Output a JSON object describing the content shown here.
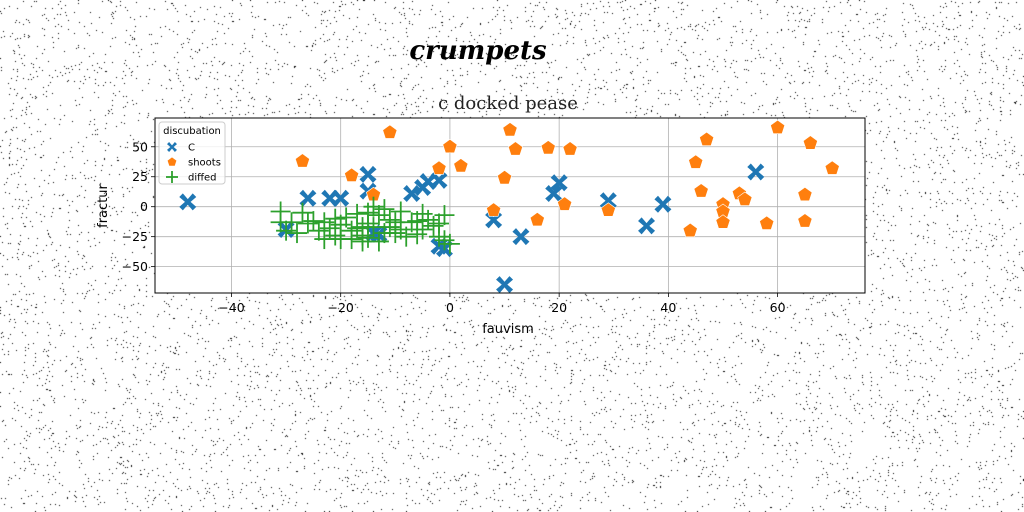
{
  "chart_data": {
    "type": "scatter",
    "suptitle": "crumpets",
    "title": "c docked pease",
    "xlabel": "fauvism",
    "ylabel": "fractur",
    "xlim": [
      -54,
      76
    ],
    "ylim": [
      -72,
      74
    ],
    "xticks": [
      -40,
      -20,
      0,
      20,
      40,
      60
    ],
    "yticks": [
      -50,
      -25,
      0,
      25,
      50
    ],
    "xtick_labels": [
      "−40",
      "−20",
      "0",
      "20",
      "40",
      "60"
    ],
    "ytick_labels": [
      "−50",
      "−25",
      "0",
      "25",
      "50"
    ],
    "grid": true,
    "legend": {
      "title": "discubation",
      "placement": "upper-left"
    },
    "series": [
      {
        "name": "C",
        "marker": "x-filled",
        "color": "#1f77b4",
        "points": [
          [
            -48,
            4
          ],
          [
            -30,
            -19
          ],
          [
            -26,
            7
          ],
          [
            -22,
            7
          ],
          [
            -20,
            7
          ],
          [
            -15,
            27
          ],
          [
            -15,
            13
          ],
          [
            -14,
            -22
          ],
          [
            -13,
            -23
          ],
          [
            -7,
            11
          ],
          [
            -5,
            16
          ],
          [
            -4,
            21
          ],
          [
            -2,
            22
          ],
          [
            -2,
            -33
          ],
          [
            -1,
            -35
          ],
          [
            8,
            -11
          ],
          [
            10,
            -65
          ],
          [
            13,
            -25
          ],
          [
            19,
            11
          ],
          [
            20,
            20
          ],
          [
            29,
            5
          ],
          [
            36,
            -16
          ],
          [
            39,
            2
          ],
          [
            56,
            29
          ]
        ]
      },
      {
        "name": "shoots",
        "marker": "pentagon",
        "color": "#ff7f0e",
        "points": [
          [
            -27,
            38
          ],
          [
            -18,
            26
          ],
          [
            -14,
            10
          ],
          [
            -11,
            62
          ],
          [
            -2,
            32
          ],
          [
            0,
            50
          ],
          [
            2,
            34
          ],
          [
            8,
            -3
          ],
          [
            10,
            24
          ],
          [
            11,
            64
          ],
          [
            12,
            48
          ],
          [
            16,
            -11
          ],
          [
            18,
            49
          ],
          [
            21,
            2
          ],
          [
            22,
            48
          ],
          [
            29,
            -3
          ],
          [
            44,
            -20
          ],
          [
            45,
            37
          ],
          [
            46,
            13
          ],
          [
            47,
            56
          ],
          [
            50,
            2
          ],
          [
            50,
            -4
          ],
          [
            50,
            -13
          ],
          [
            53,
            11
          ],
          [
            54,
            6
          ],
          [
            58,
            -14
          ],
          [
            60,
            66
          ],
          [
            65,
            10
          ],
          [
            65,
            -12
          ],
          [
            66,
            53
          ],
          [
            70,
            32
          ]
        ]
      },
      {
        "name": "diffed",
        "marker": "plus",
        "color": "#2ca02c",
        "points": [
          [
            -31,
            -4
          ],
          [
            -31,
            -13
          ],
          [
            -30,
            -20
          ],
          [
            -29,
            -13
          ],
          [
            -28,
            -22
          ],
          [
            -27,
            -5
          ],
          [
            -26,
            -14
          ],
          [
            -25,
            -12
          ],
          [
            -24,
            -20
          ],
          [
            -23,
            -13
          ],
          [
            -23,
            -27
          ],
          [
            -22,
            -18
          ],
          [
            -21,
            -24
          ],
          [
            -21,
            -10
          ],
          [
            -20,
            -15
          ],
          [
            -20,
            -27
          ],
          [
            -19,
            -9
          ],
          [
            -18,
            -27
          ],
          [
            -18,
            -20
          ],
          [
            -17,
            -18
          ],
          [
            -17,
            -6
          ],
          [
            -16,
            -17
          ],
          [
            -16,
            -24
          ],
          [
            -16,
            -29
          ],
          [
            -15,
            -5
          ],
          [
            -15,
            -14
          ],
          [
            -15,
            -26
          ],
          [
            -14,
            0
          ],
          [
            -14,
            -17
          ],
          [
            -13,
            -7
          ],
          [
            -13,
            -29
          ],
          [
            -12,
            -22
          ],
          [
            -12,
            -2
          ],
          [
            -11,
            -11
          ],
          [
            -11,
            -17
          ],
          [
            -10,
            -13
          ],
          [
            -10,
            -22
          ],
          [
            -9,
            -19
          ],
          [
            -9,
            -4
          ],
          [
            -8,
            -25
          ],
          [
            -7,
            -13
          ],
          [
            -6,
            -12
          ],
          [
            -5,
            -6
          ],
          [
            -5,
            -19
          ],
          [
            -4,
            -11
          ],
          [
            -3,
            -16
          ],
          [
            -2,
            -14
          ],
          [
            -2,
            -25
          ],
          [
            -1,
            -7
          ],
          [
            -1,
            -28
          ],
          [
            0,
            -31
          ],
          [
            -6,
            -23
          ]
        ]
      }
    ]
  }
}
